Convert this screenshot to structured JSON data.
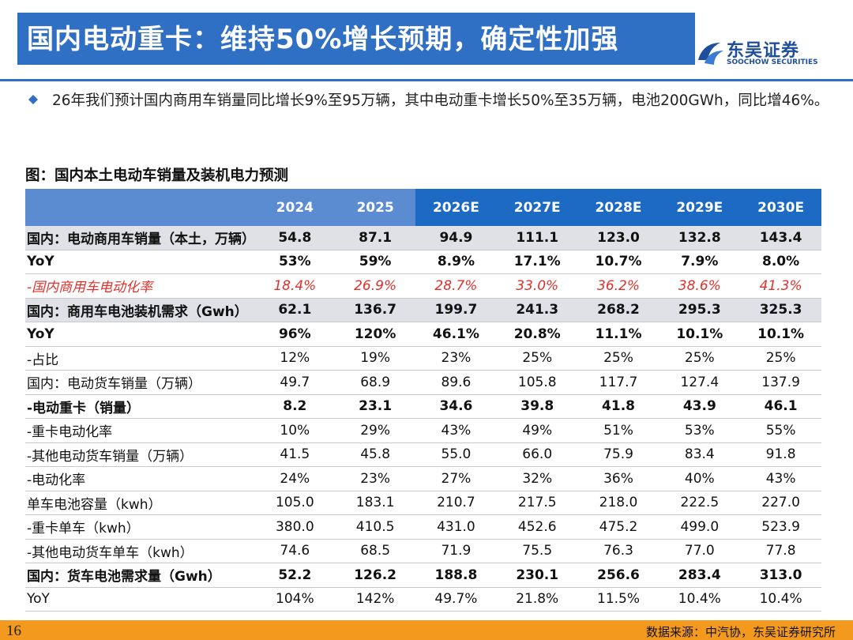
{
  "header": {
    "title": "国内电动重卡：维持50%增长预期，确定性加强",
    "logo_cn": "东吴证券",
    "logo_en": "SOOCHOW SECURITIES"
  },
  "bullet": {
    "text": "26年我们预计国内商用车销量同比增长9%至95万辆，其中电动重卡增长50%至35万辆，电池200GWh，同比增46%。"
  },
  "figure": {
    "caption": "图：国内本土电动车销量及装机电力预测"
  },
  "table": {
    "columns": [
      "2024",
      "2025",
      "2026E",
      "2027E",
      "2028E",
      "2029E",
      "2030E"
    ],
    "rows": [
      {
        "label": "国内：电动商用车销量（本土，万辆）",
        "values": [
          "54.8",
          "87.1",
          "94.9",
          "111.1",
          "123.0",
          "132.8",
          "143.4"
        ],
        "style": "bold shaded"
      },
      {
        "label": "YoY",
        "values": [
          "53%",
          "59%",
          "8.9%",
          "17.1%",
          "10.7%",
          "7.9%",
          "8.0%"
        ],
        "style": "bold"
      },
      {
        "label": "-国内商用车电动化率",
        "values": [
          "18.4%",
          "26.9%",
          "28.7%",
          "33.0%",
          "36.2%",
          "38.6%",
          "41.3%"
        ],
        "style": "red"
      },
      {
        "label": "国内：商用车电池装机需求（Gwh）",
        "values": [
          "62.1",
          "136.7",
          "199.7",
          "241.3",
          "268.2",
          "295.3",
          "325.3"
        ],
        "style": "bold shaded"
      },
      {
        "label": "YoY",
        "values": [
          "96%",
          "120%",
          "46.1%",
          "20.8%",
          "11.1%",
          "10.1%",
          "10.1%"
        ],
        "style": "bold"
      },
      {
        "label": "-占比",
        "values": [
          "12%",
          "19%",
          "23%",
          "25%",
          "25%",
          "25%",
          "25%"
        ],
        "style": ""
      },
      {
        "label": "国内：电动货车销量（万辆）",
        "values": [
          "49.7",
          "68.9",
          "89.6",
          "105.8",
          "117.7",
          "127.4",
          "137.9"
        ],
        "style": ""
      },
      {
        "label": "-电动重卡（销量）",
        "values": [
          "8.2",
          "23.1",
          "34.6",
          "39.8",
          "41.8",
          "43.9",
          "46.1"
        ],
        "style": "bold"
      },
      {
        "label": "-重卡电动化率",
        "values": [
          "10%",
          "29%",
          "43%",
          "49%",
          "51%",
          "53%",
          "55%"
        ],
        "style": ""
      },
      {
        "label": "-其他电动货车销量（万辆）",
        "values": [
          "41.5",
          "45.8",
          "55.0",
          "66.0",
          "75.9",
          "83.4",
          "91.8"
        ],
        "style": ""
      },
      {
        "label": "-电动化率",
        "values": [
          "24%",
          "23%",
          "27%",
          "32%",
          "36%",
          "40%",
          "43%"
        ],
        "style": ""
      },
      {
        "label": "单车电池容量（kwh）",
        "values": [
          "105.0",
          "183.1",
          "210.7",
          "217.5",
          "218.0",
          "222.5",
          "227.0"
        ],
        "style": ""
      },
      {
        "label": "-重卡单车（kwh）",
        "values": [
          "380.0",
          "410.5",
          "431.0",
          "452.6",
          "475.2",
          "499.0",
          "523.9"
        ],
        "style": ""
      },
      {
        "label": "-其他电动货车单车（kwh）",
        "values": [
          "74.6",
          "68.5",
          "71.9",
          "75.5",
          "76.3",
          "77.0",
          "77.8"
        ],
        "style": ""
      },
      {
        "label": "国内：货车电池需求量（Gwh）",
        "values": [
          "52.2",
          "126.2",
          "188.8",
          "230.1",
          "256.6",
          "283.4",
          "313.0"
        ],
        "style": "bold"
      },
      {
        "label": "YoY",
        "values": [
          "104%",
          "142%",
          "49.7%",
          "21.8%",
          "11.5%",
          "10.4%",
          "10.4%"
        ],
        "style": ""
      }
    ]
  },
  "footer": {
    "page_number": "16",
    "source": "数据来源：中汽协，东吴证券研究所"
  }
}
